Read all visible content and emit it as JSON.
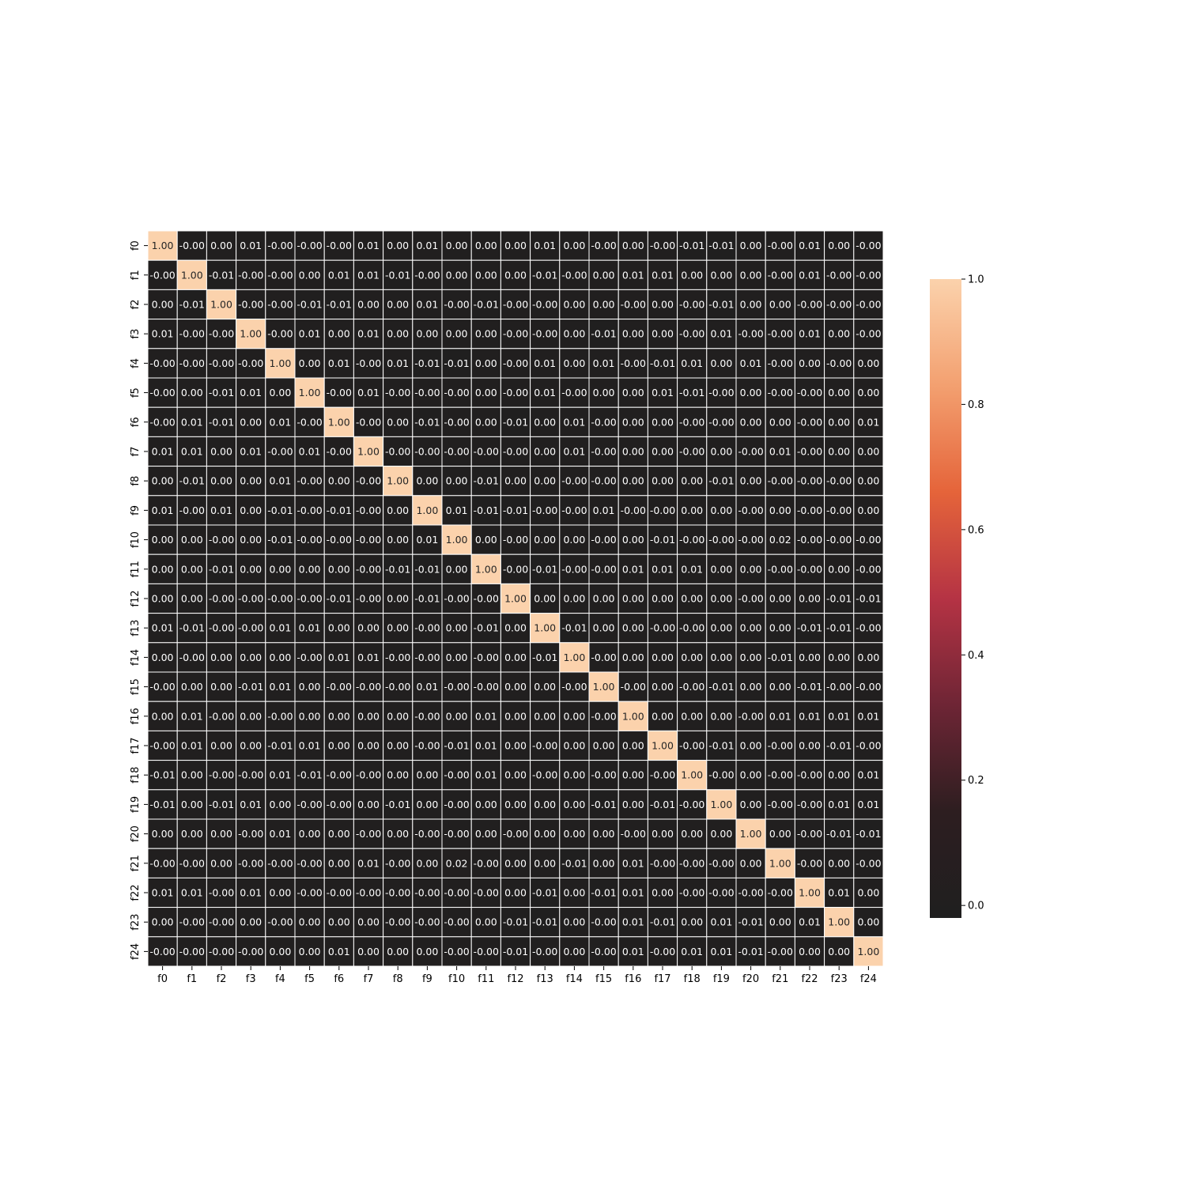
{
  "chart_data": {
    "type": "heatmap",
    "title": "",
    "xlabel": "",
    "ylabel": "",
    "x_labels": [
      "f0",
      "f1",
      "f2",
      "f3",
      "f4",
      "f5",
      "f6",
      "f7",
      "f8",
      "f9",
      "f10",
      "f11",
      "f12",
      "f13",
      "f14",
      "f15",
      "f16",
      "f17",
      "f18",
      "f19",
      "f20",
      "f21",
      "f22",
      "f23",
      "f24"
    ],
    "y_labels": [
      "f0",
      "f1",
      "f2",
      "f3",
      "f4",
      "f5",
      "f6",
      "f7",
      "f8",
      "f9",
      "f10",
      "f11",
      "f12",
      "f13",
      "f14",
      "f15",
      "f16",
      "f17",
      "f18",
      "f19",
      "f20",
      "f21",
      "f22",
      "f23",
      "f24"
    ],
    "value_format": "2 decimals",
    "annotations": true,
    "cell_labels": [
      [
        "1.00",
        "-0.00",
        "0.00",
        "0.01",
        "-0.00",
        "-0.00",
        "-0.00",
        "0.01",
        "0.00",
        "0.01",
        "0.00",
        "0.00",
        "0.00",
        "0.01",
        "0.00",
        "-0.00",
        "0.00",
        "-0.00",
        "-0.01",
        "-0.01",
        "0.00",
        "-0.00",
        "0.01",
        "0.00",
        "-0.00"
      ],
      [
        "-0.00",
        "1.00",
        "-0.01",
        "-0.00",
        "-0.00",
        "0.00",
        "0.01",
        "0.01",
        "-0.01",
        "-0.00",
        "0.00",
        "0.00",
        "0.00",
        "-0.01",
        "-0.00",
        "0.00",
        "0.01",
        "0.01",
        "0.00",
        "0.00",
        "0.00",
        "-0.00",
        "0.01",
        "-0.00",
        "-0.00"
      ],
      [
        "0.00",
        "-0.01",
        "1.00",
        "-0.00",
        "-0.00",
        "-0.01",
        "-0.01",
        "0.00",
        "0.00",
        "0.01",
        "-0.00",
        "-0.01",
        "-0.00",
        "-0.00",
        "0.00",
        "0.00",
        "-0.00",
        "0.00",
        "-0.00",
        "-0.01",
        "0.00",
        "0.00",
        "-0.00",
        "-0.00",
        "-0.00"
      ],
      [
        "0.01",
        "-0.00",
        "-0.00",
        "1.00",
        "-0.00",
        "0.01",
        "0.00",
        "0.01",
        "0.00",
        "0.00",
        "0.00",
        "0.00",
        "-0.00",
        "-0.00",
        "0.00",
        "-0.01",
        "0.00",
        "0.00",
        "-0.00",
        "0.01",
        "-0.00",
        "-0.00",
        "0.01",
        "0.00",
        "-0.00"
      ],
      [
        "-0.00",
        "-0.00",
        "-0.00",
        "-0.00",
        "1.00",
        "0.00",
        "0.01",
        "-0.00",
        "0.01",
        "-0.01",
        "-0.01",
        "0.00",
        "-0.00",
        "0.01",
        "0.00",
        "0.01",
        "-0.00",
        "-0.01",
        "0.01",
        "0.00",
        "0.01",
        "-0.00",
        "0.00",
        "-0.00",
        "0.00"
      ],
      [
        "-0.00",
        "0.00",
        "-0.01",
        "0.01",
        "0.00",
        "1.00",
        "-0.00",
        "0.01",
        "-0.00",
        "-0.00",
        "-0.00",
        "0.00",
        "-0.00",
        "0.01",
        "-0.00",
        "0.00",
        "0.00",
        "0.01",
        "-0.01",
        "-0.00",
        "0.00",
        "-0.00",
        "-0.00",
        "0.00",
        "0.00"
      ],
      [
        "-0.00",
        "0.01",
        "-0.01",
        "0.00",
        "0.01",
        "-0.00",
        "1.00",
        "-0.00",
        "0.00",
        "-0.01",
        "-0.00",
        "0.00",
        "-0.01",
        "0.00",
        "0.01",
        "-0.00",
        "0.00",
        "0.00",
        "-0.00",
        "-0.00",
        "0.00",
        "0.00",
        "-0.00",
        "0.00",
        "0.01"
      ],
      [
        "0.01",
        "0.01",
        "0.00",
        "0.01",
        "-0.00",
        "0.01",
        "-0.00",
        "1.00",
        "-0.00",
        "-0.00",
        "-0.00",
        "-0.00",
        "-0.00",
        "0.00",
        "0.01",
        "-0.00",
        "0.00",
        "0.00",
        "-0.00",
        "0.00",
        "-0.00",
        "0.01",
        "-0.00",
        "0.00",
        "0.00"
      ],
      [
        "0.00",
        "-0.01",
        "0.00",
        "0.00",
        "0.01",
        "-0.00",
        "0.00",
        "-0.00",
        "1.00",
        "0.00",
        "0.00",
        "-0.01",
        "0.00",
        "0.00",
        "-0.00",
        "-0.00",
        "0.00",
        "0.00",
        "0.00",
        "-0.01",
        "0.00",
        "-0.00",
        "-0.00",
        "-0.00",
        "0.00"
      ],
      [
        "0.01",
        "-0.00",
        "0.01",
        "0.00",
        "-0.01",
        "-0.00",
        "-0.01",
        "-0.00",
        "0.00",
        "1.00",
        "0.01",
        "-0.01",
        "-0.01",
        "-0.00",
        "-0.00",
        "0.01",
        "-0.00",
        "-0.00",
        "0.00",
        "0.00",
        "-0.00",
        "0.00",
        "-0.00",
        "-0.00",
        "0.00"
      ],
      [
        "0.00",
        "0.00",
        "-0.00",
        "0.00",
        "-0.01",
        "-0.00",
        "-0.00",
        "-0.00",
        "0.00",
        "0.01",
        "1.00",
        "0.00",
        "-0.00",
        "0.00",
        "0.00",
        "-0.00",
        "0.00",
        "-0.01",
        "-0.00",
        "-0.00",
        "-0.00",
        "0.02",
        "-0.00",
        "-0.00",
        "-0.00"
      ],
      [
        "0.00",
        "0.00",
        "-0.01",
        "0.00",
        "0.00",
        "0.00",
        "0.00",
        "-0.00",
        "-0.01",
        "-0.01",
        "0.00",
        "1.00",
        "-0.00",
        "-0.01",
        "-0.00",
        "-0.00",
        "0.01",
        "0.01",
        "0.01",
        "0.00",
        "0.00",
        "-0.00",
        "-0.00",
        "0.00",
        "-0.00"
      ],
      [
        "0.00",
        "0.00",
        "-0.00",
        "-0.00",
        "-0.00",
        "-0.00",
        "-0.01",
        "-0.00",
        "0.00",
        "-0.01",
        "-0.00",
        "-0.00",
        "1.00",
        "0.00",
        "0.00",
        "0.00",
        "0.00",
        "0.00",
        "0.00",
        "0.00",
        "-0.00",
        "0.00",
        "0.00",
        "-0.01",
        "-0.01"
      ],
      [
        "0.01",
        "-0.01",
        "-0.00",
        "-0.00",
        "0.01",
        "0.01",
        "0.00",
        "0.00",
        "0.00",
        "-0.00",
        "0.00",
        "-0.01",
        "0.00",
        "1.00",
        "-0.01",
        "0.00",
        "0.00",
        "-0.00",
        "-0.00",
        "0.00",
        "0.00",
        "0.00",
        "-0.01",
        "-0.01",
        "-0.00"
      ],
      [
        "0.00",
        "-0.00",
        "0.00",
        "0.00",
        "0.00",
        "-0.00",
        "0.01",
        "0.01",
        "-0.00",
        "-0.00",
        "0.00",
        "-0.00",
        "0.00",
        "-0.01",
        "1.00",
        "-0.00",
        "0.00",
        "0.00",
        "0.00",
        "0.00",
        "0.00",
        "-0.01",
        "0.00",
        "0.00",
        "0.00"
      ],
      [
        "-0.00",
        "0.00",
        "0.00",
        "-0.01",
        "0.01",
        "0.00",
        "-0.00",
        "-0.00",
        "-0.00",
        "0.01",
        "-0.00",
        "-0.00",
        "0.00",
        "0.00",
        "-0.00",
        "1.00",
        "-0.00",
        "0.00",
        "-0.00",
        "-0.01",
        "0.00",
        "0.00",
        "-0.01",
        "-0.00",
        "-0.00"
      ],
      [
        "0.00",
        "0.01",
        "-0.00",
        "0.00",
        "-0.00",
        "0.00",
        "0.00",
        "0.00",
        "0.00",
        "-0.00",
        "0.00",
        "0.01",
        "0.00",
        "0.00",
        "0.00",
        "-0.00",
        "1.00",
        "0.00",
        "0.00",
        "0.00",
        "-0.00",
        "0.01",
        "0.01",
        "0.01",
        "0.01"
      ],
      [
        "-0.00",
        "0.01",
        "0.00",
        "0.00",
        "-0.01",
        "0.01",
        "0.00",
        "0.00",
        "0.00",
        "-0.00",
        "-0.01",
        "0.01",
        "0.00",
        "-0.00",
        "0.00",
        "0.00",
        "0.00",
        "1.00",
        "-0.00",
        "-0.01",
        "0.00",
        "-0.00",
        "0.00",
        "-0.01",
        "-0.00"
      ],
      [
        "-0.01",
        "0.00",
        "-0.00",
        "-0.00",
        "0.01",
        "-0.01",
        "-0.00",
        "-0.00",
        "0.00",
        "0.00",
        "-0.00",
        "0.01",
        "0.00",
        "-0.00",
        "0.00",
        "-0.00",
        "0.00",
        "-0.00",
        "1.00",
        "-0.00",
        "0.00",
        "-0.00",
        "-0.00",
        "0.00",
        "0.01"
      ],
      [
        "-0.01",
        "0.00",
        "-0.01",
        "0.01",
        "0.00",
        "-0.00",
        "-0.00",
        "0.00",
        "-0.01",
        "0.00",
        "-0.00",
        "0.00",
        "0.00",
        "0.00",
        "0.00",
        "-0.01",
        "0.00",
        "-0.01",
        "-0.00",
        "1.00",
        "0.00",
        "-0.00",
        "-0.00",
        "0.01",
        "0.01"
      ],
      [
        "0.00",
        "0.00",
        "0.00",
        "-0.00",
        "0.01",
        "0.00",
        "0.00",
        "-0.00",
        "0.00",
        "-0.00",
        "-0.00",
        "0.00",
        "-0.00",
        "0.00",
        "0.00",
        "0.00",
        "-0.00",
        "0.00",
        "0.00",
        "0.00",
        "1.00",
        "0.00",
        "-0.00",
        "-0.01",
        "-0.01"
      ],
      [
        "-0.00",
        "-0.00",
        "0.00",
        "-0.00",
        "-0.00",
        "-0.00",
        "0.00",
        "0.01",
        "-0.00",
        "0.00",
        "0.02",
        "-0.00",
        "0.00",
        "0.00",
        "-0.01",
        "0.00",
        "0.01",
        "-0.00",
        "-0.00",
        "-0.00",
        "0.00",
        "1.00",
        "-0.00",
        "0.00",
        "-0.00"
      ],
      [
        "0.01",
        "0.01",
        "-0.00",
        "0.01",
        "0.00",
        "-0.00",
        "-0.00",
        "-0.00",
        "-0.00",
        "-0.00",
        "-0.00",
        "-0.00",
        "0.00",
        "-0.01",
        "0.00",
        "-0.01",
        "0.01",
        "0.00",
        "-0.00",
        "-0.00",
        "-0.00",
        "-0.00",
        "1.00",
        "0.01",
        "0.00"
      ],
      [
        "0.00",
        "-0.00",
        "-0.00",
        "0.00",
        "-0.00",
        "0.00",
        "0.00",
        "0.00",
        "-0.00",
        "-0.00",
        "-0.00",
        "0.00",
        "-0.01",
        "-0.01",
        "0.00",
        "-0.00",
        "0.01",
        "-0.01",
        "0.00",
        "0.01",
        "-0.01",
        "0.00",
        "0.01",
        "1.00",
        "0.00"
      ],
      [
        "-0.00",
        "-0.00",
        "-0.00",
        "-0.00",
        "0.00",
        "0.00",
        "0.01",
        "0.00",
        "0.00",
        "0.00",
        "-0.00",
        "-0.00",
        "-0.01",
        "-0.00",
        "0.00",
        "-0.00",
        "0.01",
        "-0.00",
        "0.01",
        "0.01",
        "-0.01",
        "-0.00",
        "0.00",
        "0.00",
        "1.00"
      ]
    ],
    "colorbar": {
      "min": -0.02,
      "max": 1.0,
      "ticks": [
        0.0,
        0.2,
        0.4,
        0.6,
        0.8,
        1.0
      ],
      "tick_labels": [
        "0.0",
        "0.2",
        "0.4",
        "0.6",
        "0.8",
        "1.0"
      ],
      "colormap_stops": [
        "#1f1f1f",
        "#2d1e20",
        "#6e2535",
        "#b53344",
        "#e5643a",
        "#f3a070",
        "#fbd2ac"
      ]
    },
    "cell_border_color": "#ffffff",
    "text_color_dark_cell": "#ffffff",
    "text_color_light_cell": "#262626"
  }
}
